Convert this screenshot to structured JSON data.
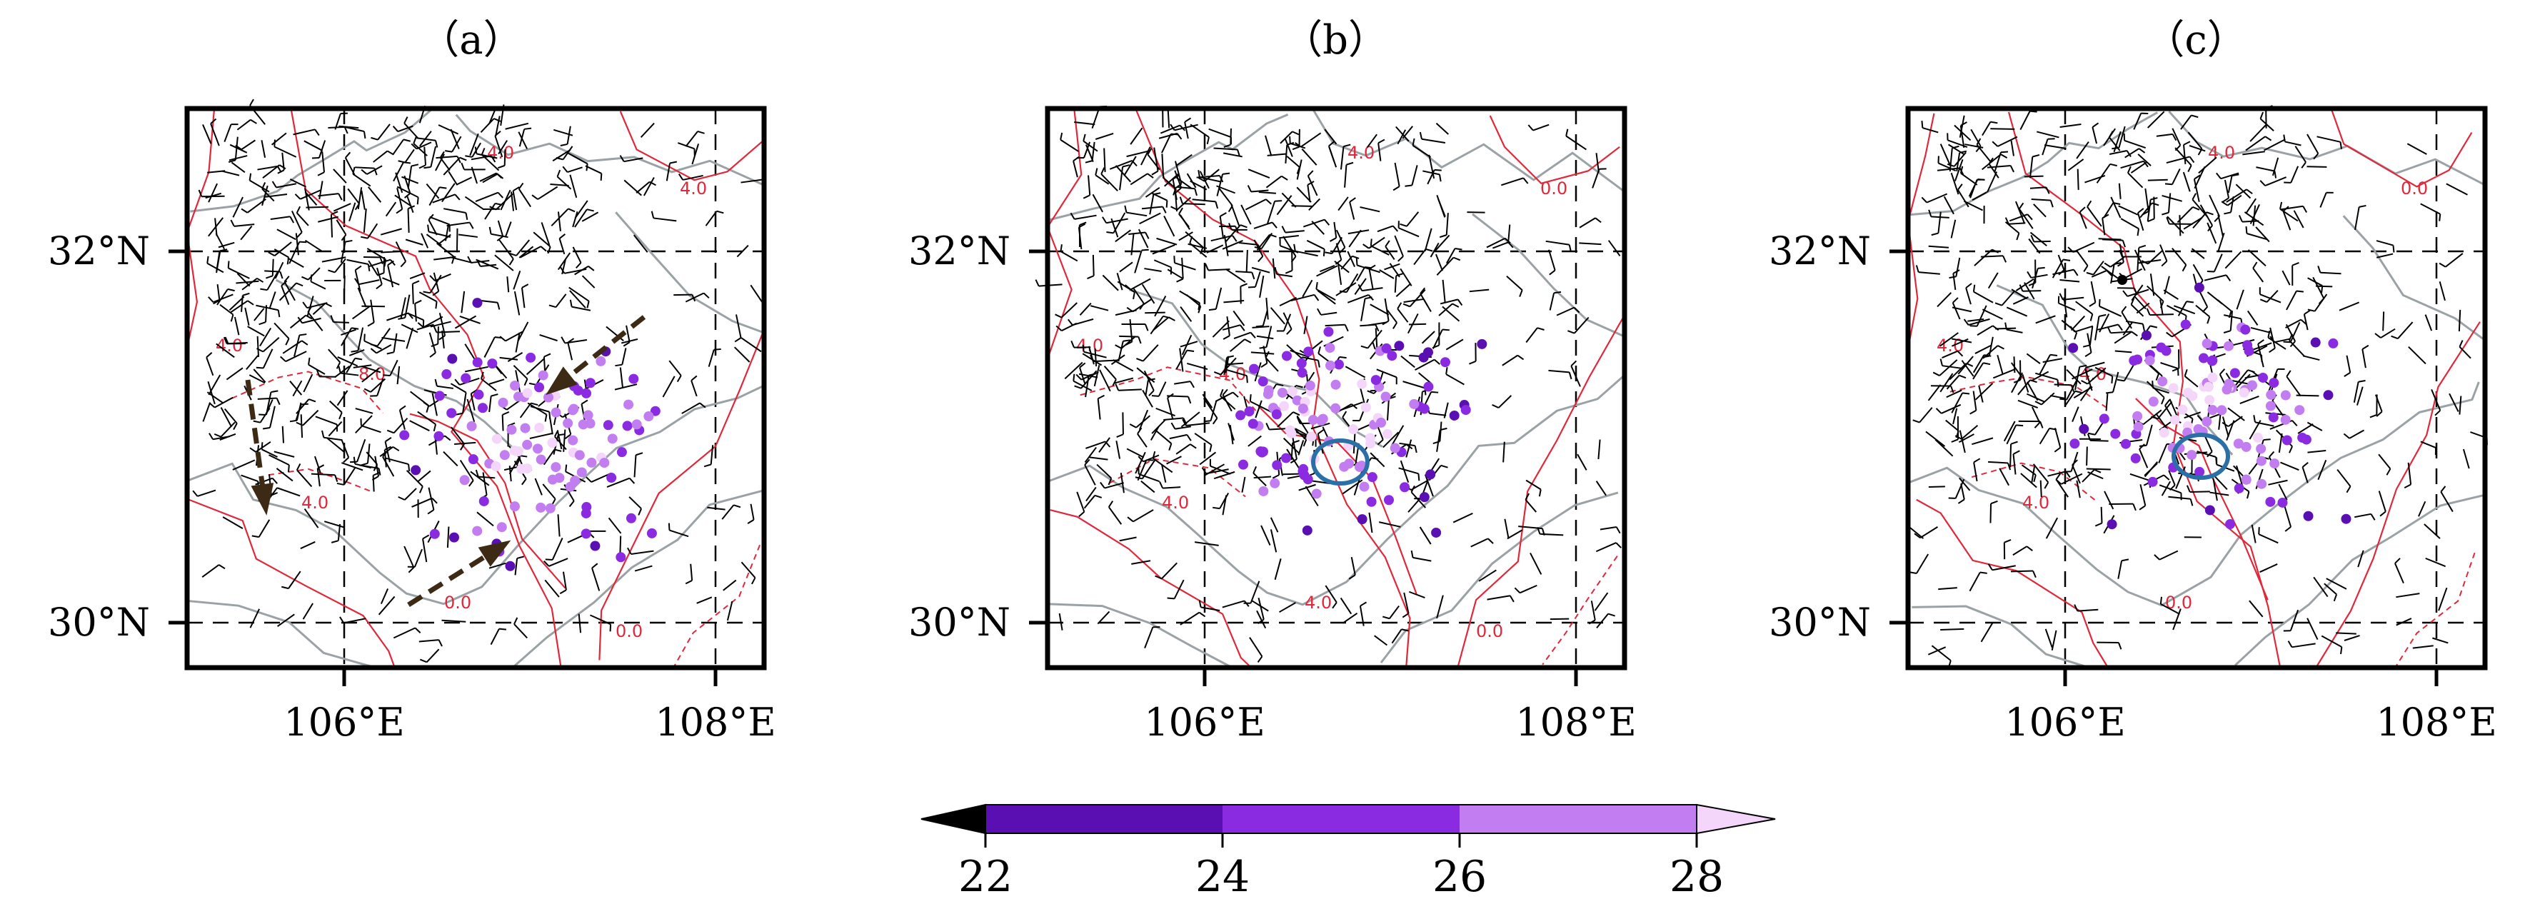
{
  "panels": [
    {
      "title": "（a）",
      "lat_ticks": [
        "32°N",
        "30°N"
      ],
      "lon_ticks": [
        "106°E",
        "108°E"
      ],
      "contour_labels": [
        "4.0",
        "4.0",
        "4.0",
        "8.0",
        "4.0",
        "0.0",
        "0.0"
      ],
      "has_arrows": true,
      "has_circle": false
    },
    {
      "title": "（b）",
      "lat_ticks": [
        "32°N",
        "30°N"
      ],
      "lon_ticks": [
        "106°E",
        "108°E"
      ],
      "contour_labels": [
        "4.0",
        "4.0",
        "0.0",
        "4.0",
        "4.0",
        "4.0",
        "0.0"
      ],
      "has_arrows": false,
      "has_circle": true
    },
    {
      "title": "（c）",
      "lat_ticks": [
        "32°N",
        "30°N"
      ],
      "lon_ticks": [
        "106°E",
        "108°E"
      ],
      "contour_labels": [
        "4.0",
        "4.0",
        "0.0",
        "4.0",
        "4.0",
        "0.0"
      ],
      "has_arrows": false,
      "has_circle": true
    }
  ],
  "colorbar": {
    "ticks": [
      "22",
      "24",
      "26",
      "28"
    ],
    "colors": {
      "below": "#000000",
      "bin_22_24": "#5a0fb2",
      "bin_24_26": "#8a2be2",
      "bin_26_28": "#c27df0",
      "above": "#f4d6fb"
    }
  },
  "styles": {
    "contour_color": "#e0283a",
    "boundary_color": "#9aa2a6",
    "barb_color": "#000000",
    "arrow_color": "#3d2a14",
    "circle_color": "#2a6fa6"
  }
}
